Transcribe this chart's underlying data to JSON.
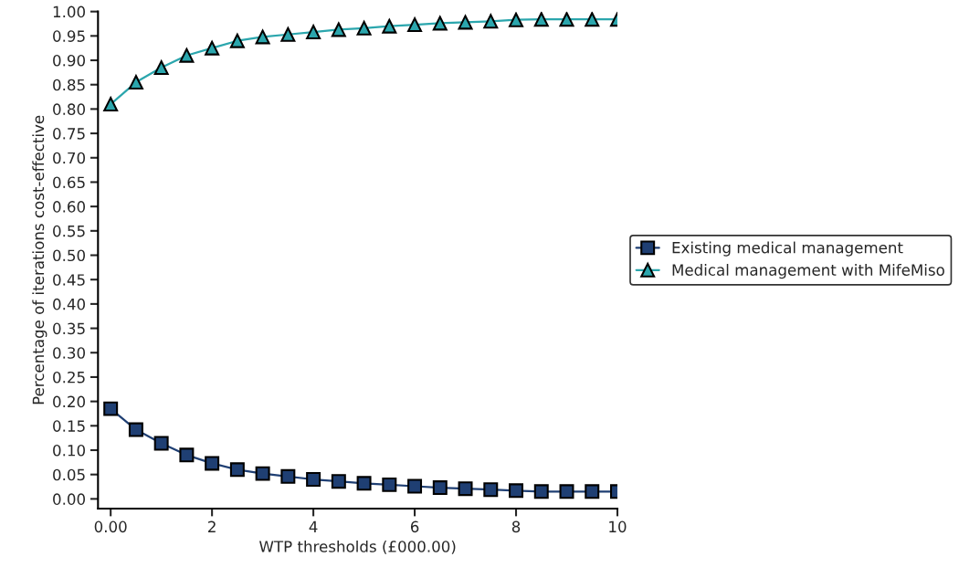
{
  "chart_data": {
    "type": "line",
    "xlabel": "WTP thresholds (£000.00)",
    "ylabel": "Percentage of iterations cost-effective",
    "x": [
      0,
      0.5,
      1,
      1.5,
      2,
      2.5,
      3,
      3.5,
      4,
      4.5,
      5,
      5.5,
      6,
      6.5,
      7,
      7.5,
      8,
      8.5,
      9,
      9.5,
      10
    ],
    "series": [
      {
        "name": "Existing medical management",
        "color": "#1f3f73",
        "marker": "square",
        "values": [
          0.185,
          0.142,
          0.114,
          0.09,
          0.073,
          0.06,
          0.052,
          0.046,
          0.04,
          0.036,
          0.032,
          0.029,
          0.026,
          0.023,
          0.021,
          0.019,
          0.017,
          0.015,
          0.015,
          0.015,
          0.015
        ]
      },
      {
        "name": "Medical management with MifeMiso",
        "color": "#2ba6ad",
        "marker": "triangle",
        "values": [
          0.81,
          0.855,
          0.885,
          0.91,
          0.925,
          0.94,
          0.948,
          0.953,
          0.958,
          0.963,
          0.966,
          0.97,
          0.973,
          0.976,
          0.978,
          0.98,
          0.983,
          0.984,
          0.984,
          0.984,
          0.984
        ]
      }
    ],
    "xlim": [
      -0.25,
      10
    ],
    "xticks": [
      {
        "value": 0,
        "label": "0.00"
      },
      2,
      4,
      6,
      8,
      10
    ],
    "ylim": [
      -0.02,
      1.0
    ],
    "yticks": [
      {
        "value": 0,
        "label": "0.00"
      },
      {
        "value": 0.05,
        "label": "0.05"
      },
      {
        "value": 0.1,
        "label": "0.10"
      },
      {
        "value": 0.15,
        "label": "0.15"
      },
      {
        "value": 0.2,
        "label": "0.20"
      },
      {
        "value": 0.25,
        "label": "0.25"
      },
      {
        "value": 0.3,
        "label": "0.30"
      },
      {
        "value": 0.35,
        "label": "0.35"
      },
      {
        "value": 0.4,
        "label": "0.40"
      },
      {
        "value": 0.45,
        "label": "0.45"
      },
      {
        "value": 0.5,
        "label": "0.50"
      },
      {
        "value": 0.55,
        "label": "0.55"
      },
      {
        "value": 0.6,
        "label": "0.60"
      },
      {
        "value": 0.65,
        "label": "0.65"
      },
      {
        "value": 0.7,
        "label": "0.70"
      },
      {
        "value": 0.75,
        "label": "0.75"
      },
      {
        "value": 0.8,
        "label": "0.80"
      },
      {
        "value": 0.85,
        "label": "0.85"
      },
      {
        "value": 0.9,
        "label": "0.90"
      },
      {
        "value": 0.95,
        "label": "0.95"
      },
      {
        "value": 1.0,
        "label": "1.00"
      }
    ],
    "grid": false,
    "legend": "right",
    "line_style": "solid"
  }
}
